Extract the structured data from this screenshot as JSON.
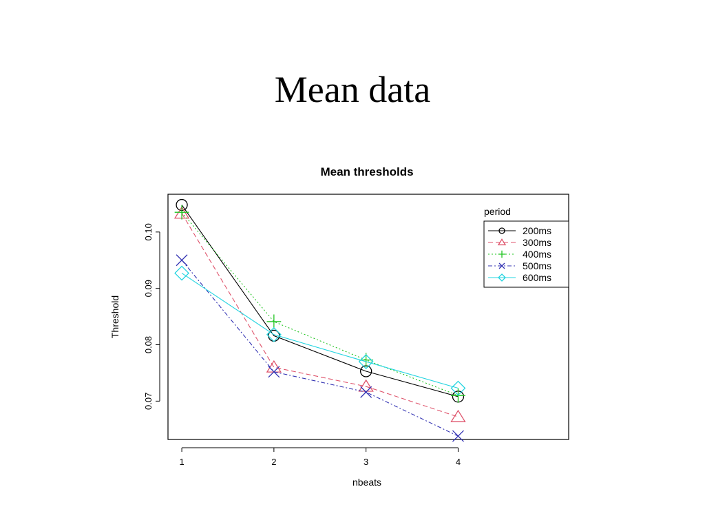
{
  "slide": {
    "title": "Mean data"
  },
  "chart_data": {
    "type": "line",
    "title": "Mean thresholds",
    "xlabel": "nbeats",
    "ylabel": "Threshold",
    "x": [
      1,
      2,
      3,
      4
    ],
    "x_ticks": [
      "1",
      "2",
      "3",
      "4"
    ],
    "y_ticks": [
      "0.07",
      "0.08",
      "0.09",
      "0.10"
    ],
    "y_tick_values": [
      0.07,
      0.08,
      0.09,
      0.1
    ],
    "xlim": [
      0.85,
      5.2
    ],
    "ylim": [
      0.0632,
      0.1067
    ],
    "grid": false,
    "legend": {
      "title": "period",
      "placement": "top-right"
    },
    "series": [
      {
        "name": "200ms",
        "values": [
          0.1048,
          0.0816,
          0.0753,
          0.0708
        ],
        "color": "#000000",
        "marker": "circle",
        "dash": ""
      },
      {
        "name": "300ms",
        "values": [
          0.1033,
          0.076,
          0.0726,
          0.0672
        ],
        "color": "#DF536B",
        "marker": "triangle",
        "dash": "7,4"
      },
      {
        "name": "400ms",
        "values": [
          0.1035,
          0.0841,
          0.0773,
          0.071
        ],
        "color": "#1FC41F",
        "marker": "plus",
        "dash": "2,3"
      },
      {
        "name": "500ms",
        "values": [
          0.095,
          0.0752,
          0.0716,
          0.0638
        ],
        "color": "#3333B3",
        "marker": "cross",
        "dash": "6,3,2,3"
      },
      {
        "name": "600ms",
        "values": [
          0.0927,
          0.0818,
          0.077,
          0.0723
        ],
        "color": "#22D4E0",
        "marker": "diamond",
        "dash": ""
      }
    ]
  }
}
